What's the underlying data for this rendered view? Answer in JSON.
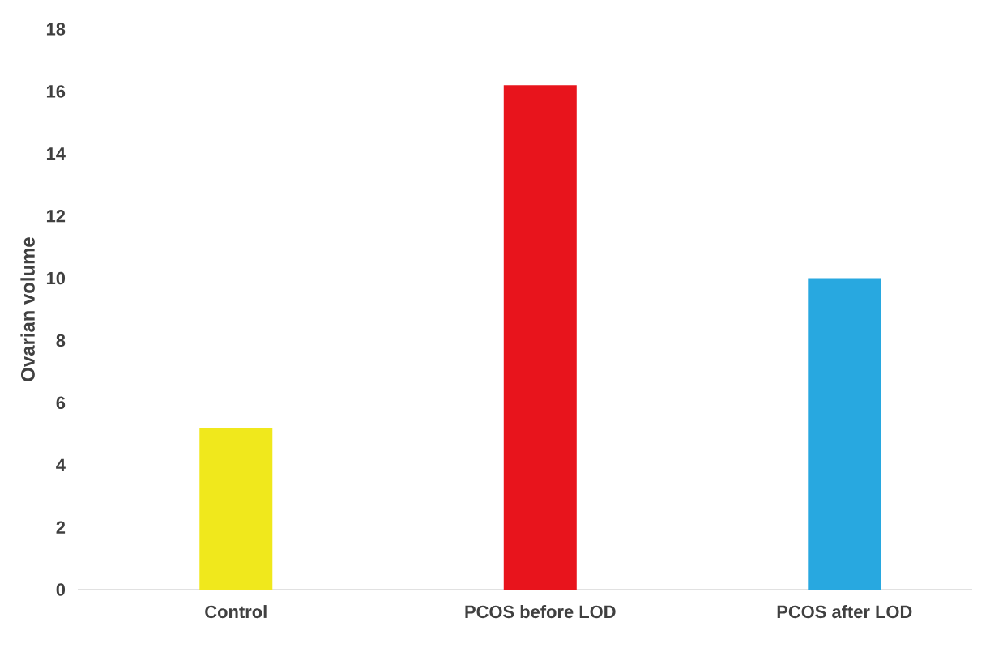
{
  "chart_data": {
    "type": "bar",
    "ylabel": "Ovarian volume",
    "categories": [
      "Control",
      "PCOS before LOD",
      "PCOS after LOD"
    ],
    "values": [
      5.2,
      16.2,
      10.0
    ],
    "colors": [
      "#f0e81c",
      "#e8141c",
      "#28a8e0"
    ],
    "ylim": [
      0,
      18
    ],
    "yticks": [
      0,
      2,
      4,
      6,
      8,
      10,
      12,
      14,
      16,
      18
    ]
  }
}
